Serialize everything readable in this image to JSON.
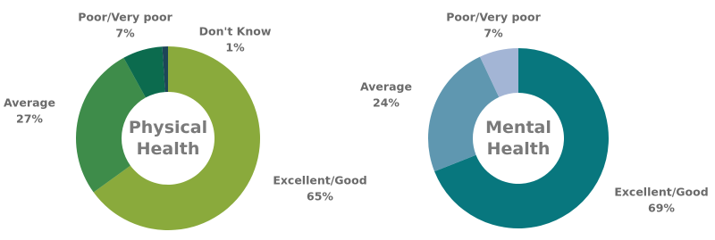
{
  "chart_data": [
    {
      "type": "donut",
      "title": "Physical Health",
      "categories": [
        "Excellent/Good",
        "Average",
        "Poor/Very poor",
        "Don't Know"
      ],
      "values": [
        65,
        27,
        7,
        1
      ],
      "value_labels": [
        "65%",
        "27%",
        "7%",
        "1%"
      ],
      "colors": [
        "#8aaa3c",
        "#3e8c4a",
        "#0c6b4e",
        "#1d4658"
      ]
    },
    {
      "type": "donut",
      "title": "Mental Health",
      "categories": [
        "Excellent/Good",
        "Average",
        "Poor/Very poor"
      ],
      "values": [
        69,
        24,
        7
      ],
      "value_labels": [
        "69%",
        "24%",
        "7%"
      ],
      "colors": [
        "#08777e",
        "#5f97b0",
        "#a3b5d5"
      ]
    }
  ]
}
